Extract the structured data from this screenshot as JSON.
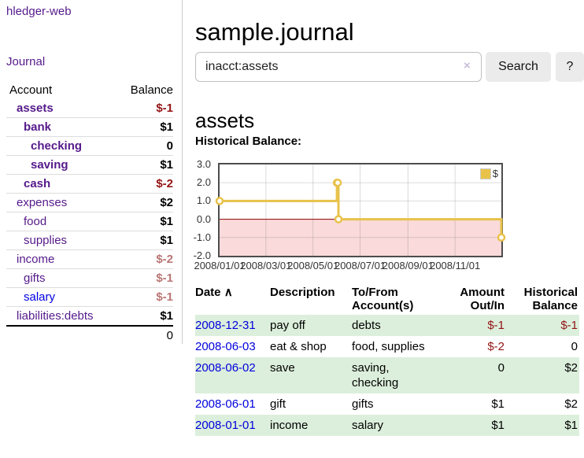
{
  "app": {
    "name": "hledger-web"
  },
  "sidebar": {
    "journal_link": "Journal",
    "accounts": {
      "header": {
        "account": "Account",
        "balance": "Balance"
      },
      "rows": [
        {
          "name": "assets",
          "balance": "$-1",
          "depth": 1,
          "bold": true,
          "balance_style": "negative",
          "link_style": "purple"
        },
        {
          "name": "bank",
          "balance": "$1",
          "depth": 2,
          "bold": true,
          "balance_style": "normal",
          "link_style": "purple"
        },
        {
          "name": "checking",
          "balance": "0",
          "depth": 3,
          "bold": true,
          "balance_style": "normal",
          "link_style": "purple"
        },
        {
          "name": "saving",
          "balance": "$1",
          "depth": 3,
          "bold": true,
          "balance_style": "normal",
          "link_style": "purple"
        },
        {
          "name": "cash",
          "balance": "$-2",
          "depth": 2,
          "bold": true,
          "balance_style": "negative",
          "link_style": "purple"
        },
        {
          "name": "expenses",
          "balance": "$2",
          "depth": 1,
          "bold": false,
          "balance_style": "normal",
          "link_style": "purple"
        },
        {
          "name": "food",
          "balance": "$1",
          "depth": 2,
          "bold": false,
          "balance_style": "normal",
          "link_style": "purple"
        },
        {
          "name": "supplies",
          "balance": "$1",
          "depth": 2,
          "bold": false,
          "balance_style": "normal",
          "link_style": "purple"
        },
        {
          "name": "income",
          "balance": "$-2",
          "depth": 1,
          "bold": false,
          "balance_style": "negative-muted",
          "link_style": "purple"
        },
        {
          "name": "gifts",
          "balance": "$-1",
          "depth": 2,
          "bold": false,
          "balance_style": "negative-muted",
          "link_style": "purple"
        },
        {
          "name": "salary",
          "balance": "$-1",
          "depth": 2,
          "bold": false,
          "balance_style": "negative-muted",
          "link_style": "blue"
        },
        {
          "name": "liabilities:debts",
          "balance": "$1",
          "depth": 1,
          "bold": false,
          "balance_style": "normal",
          "link_style": "purple"
        }
      ],
      "total": "0"
    }
  },
  "main": {
    "title": "sample.journal",
    "search": {
      "value": "inacct:assets",
      "clear_icon": "×",
      "button": "Search",
      "help_button": "?"
    },
    "account_title": "assets",
    "chart_label": "Historical Balance:"
  },
  "chart_data": {
    "type": "line",
    "step_style": "step-after",
    "title": "Historical Balance",
    "xlim": [
      "2008-01-01",
      "2008-12-31"
    ],
    "ylim": [
      -2,
      3
    ],
    "y_ticks": [
      3.0,
      2.0,
      1.0,
      0.0,
      -1.0,
      -2.0
    ],
    "x_ticks": [
      {
        "date": "2008-01-01",
        "label": "2008/01/01"
      },
      {
        "date": "2008-03-01",
        "label": "2008/03/01"
      },
      {
        "date": "2008-05-01",
        "label": "2008/05/01"
      },
      {
        "date": "2008-07-01",
        "label": "2008/07/01"
      },
      {
        "date": "2008-09-01",
        "label": "2008/09/01"
      },
      {
        "date": "2008-11-01",
        "label": "2008/11/01"
      }
    ],
    "grid": true,
    "legend_position": "top-right",
    "legend": [
      {
        "label": "$",
        "color": "#e8c24a"
      }
    ],
    "series": [
      {
        "name": "$",
        "color": "#e8c24a",
        "points": [
          {
            "date": "2008-01-01",
            "value": 1
          },
          {
            "date": "2008-06-01",
            "value": 2
          },
          {
            "date": "2008-06-02",
            "value": 2
          },
          {
            "date": "2008-06-03",
            "value": 0
          },
          {
            "date": "2008-12-31",
            "value": -1
          }
        ]
      }
    ],
    "negative_region_color": "#fadada",
    "zero_line_color": "#8b0000"
  },
  "register": {
    "headers": {
      "date": "Date",
      "sort_icon": "∧",
      "description": "Description",
      "tofrom_line1": "To/From",
      "tofrom_line2": "Account(s)",
      "amount_line1": "Amount",
      "amount_line2": "Out/In",
      "balance_line1": "Historical",
      "balance_line2": "Balance"
    },
    "rows": [
      {
        "date": "2008-12-31",
        "description": "pay off",
        "accounts": "debts",
        "amount": "$-1",
        "amount_style": "negative",
        "balance": "$-1",
        "balance_style": "negative",
        "striped": true
      },
      {
        "date": "2008-06-03",
        "description": "eat & shop",
        "accounts": "food, supplies",
        "amount": "$-2",
        "amount_style": "negative",
        "balance": "0",
        "balance_style": "normal",
        "striped": false
      },
      {
        "date": "2008-06-02",
        "description": "save",
        "accounts": "saving, checking",
        "amount": "0",
        "amount_style": "normal",
        "balance": "$2",
        "balance_style": "normal",
        "striped": true
      },
      {
        "date": "2008-06-01",
        "description": "gift",
        "accounts": "gifts",
        "amount": "$1",
        "amount_style": "normal",
        "balance": "$2",
        "balance_style": "normal",
        "striped": false
      },
      {
        "date": "2008-01-01",
        "description": "income",
        "accounts": "salary",
        "amount": "$1",
        "amount_style": "normal",
        "balance": "$1",
        "balance_style": "normal",
        "striped": true
      }
    ]
  },
  "colors": {
    "link_purple": "#551a8b",
    "link_blue": "#0000dd",
    "negative_strong": "#941414",
    "negative_muted": "#ba7575",
    "stripe_green": "#dcefdc",
    "chart_line": "#e8c24a"
  }
}
